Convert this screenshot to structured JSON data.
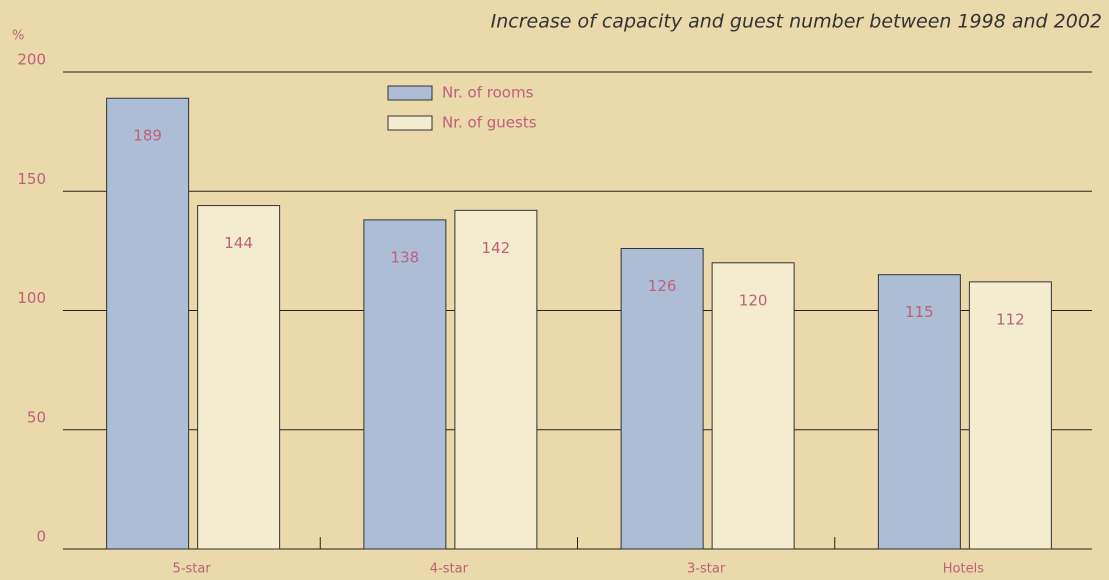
{
  "chart_data": {
    "type": "bar",
    "title": "Increase of capacity and guest number between 1998 and 2002",
    "y_label": "%",
    "categories": [
      "5-star",
      "4-star",
      "3-star",
      "Hotels"
    ],
    "series": [
      {
        "name": "Nr. of rooms",
        "color": "#adbdd6",
        "values": [
          189,
          138,
          126,
          115
        ]
      },
      {
        "name": "Nr. of guests",
        "color": "#f3ecce",
        "values": [
          144,
          142,
          120,
          112
        ]
      }
    ],
    "ylim": [
      0,
      200
    ],
    "yticks": [
      0,
      50,
      100,
      150,
      200
    ],
    "grid": true
  }
}
